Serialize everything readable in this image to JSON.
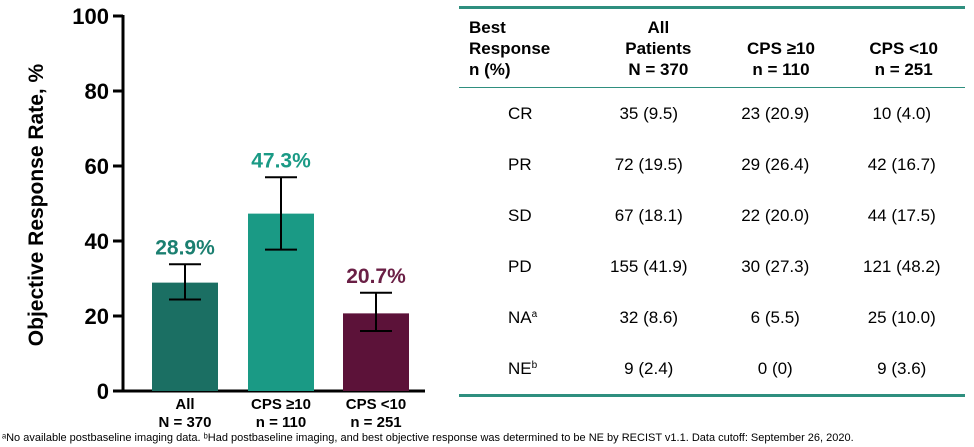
{
  "chart_data": {
    "type": "bar",
    "ylabel": "Objective Response Rate, %",
    "ylim": [
      0,
      100
    ],
    "yticks": [
      0,
      20,
      40,
      60,
      80,
      100
    ],
    "grid": false,
    "categories": [
      {
        "line1": "All",
        "line2": "N = 370"
      },
      {
        "line1": "CPS ≥10",
        "line2": "n = 110"
      },
      {
        "line1": "CPS <10",
        "line2": "n = 251"
      }
    ],
    "values": [
      28.9,
      47.3,
      20.7
    ],
    "error_low": [
      24.4,
      37.7,
      16.0
    ],
    "error_high": [
      33.8,
      57.0,
      26.2
    ],
    "data_labels": [
      "28.9%",
      "47.3%",
      "20.7%"
    ],
    "colors": [
      "#1b6f63",
      "#1a9a85",
      "#5c1239"
    ],
    "label_colors": [
      "#1b7f70",
      "#1a9a85",
      "#6a1f45"
    ]
  },
  "table": {
    "headers": [
      "Best\nResponse\nn (%)",
      "All\nPatients\nN = 370",
      "CPS ≥10\nn = 110",
      "CPS <10\nn = 251"
    ],
    "rows": [
      {
        "label": "CR",
        "sup": "",
        "values": [
          "35 (9.5)",
          "23 (20.9)",
          "10 (4.0)"
        ]
      },
      {
        "label": "PR",
        "sup": "",
        "values": [
          "72 (19.5)",
          "29 (26.4)",
          "42 (16.7)"
        ]
      },
      {
        "label": "SD",
        "sup": "",
        "values": [
          "67 (18.1)",
          "22 (20.0)",
          "44 (17.5)"
        ]
      },
      {
        "label": "PD",
        "sup": "",
        "values": [
          "155 (41.9)",
          "30 (27.3)",
          "121 (48.2)"
        ]
      },
      {
        "label": "NA",
        "sup": "a",
        "values": [
          "32 (8.6)",
          "6 (5.5)",
          "25 (10.0)"
        ]
      },
      {
        "label": "NE",
        "sup": "b",
        "values": [
          "9 (2.4)",
          "0 (0)",
          "9 (3.6)"
        ]
      }
    ],
    "accent_color": "#2f8f7f"
  },
  "footnote": "ᵃNo available postbaseline imaging data. ᵇHad postbaseline imaging, and best objective response was determined to be NE by RECIST v1.1. Data cutoff: September 26, 2020."
}
